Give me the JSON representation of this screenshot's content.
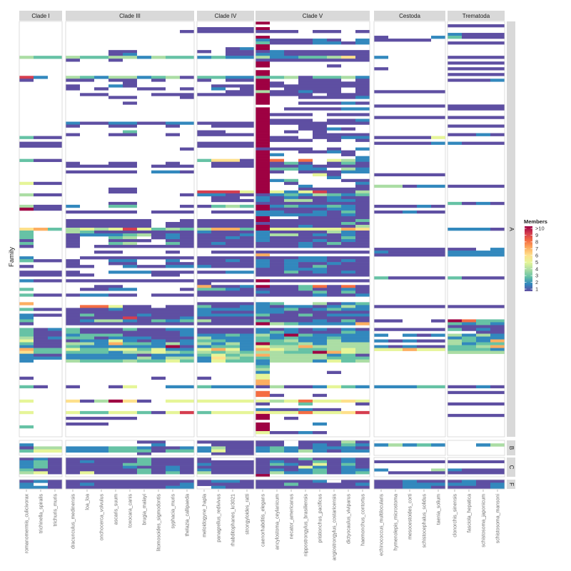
{
  "chart_data": {
    "type": "heatmap",
    "title": "",
    "xlabel": "",
    "ylabel": "Family",
    "encoding": "each row string lists one value per species column (groups separated by |): 0 = empty, 1-9 = member count, X = >10",
    "column_groups": [
      {
        "name": "Clade I",
        "species": [
          "romanomermis_culicivorax",
          "trichinella_spiralis",
          "trichuris_muris"
        ]
      },
      {
        "name": "Clade III",
        "species": [
          "dracunculus_medinensis",
          "loa_loa",
          "onchocerca_volvulus",
          "ascaris_suum",
          "toxocara_canis",
          "brugia_malayi",
          "litomosoides_sigmodontis",
          "syphacia_muris",
          "thelazia_callipaeda"
        ]
      },
      {
        "name": "Clade IV",
        "species": [
          "meloidogyne_hapla",
          "panagrellus_redivivus",
          "rhabditophanes_kr3021",
          "strongyloides_ratti"
        ]
      },
      {
        "name": "Clade V",
        "species": [
          "caenorhabditis_elegans",
          "ancylostoma_ceylanicum",
          "necator_americanus",
          "nippostrongylus_brasiliensis",
          "pristionchus_pacificus",
          "angiostrongylus_costaricensis",
          "dictyocaulus_viviparus",
          "haemonchus_contortus"
        ]
      },
      {
        "name": "Cestoda",
        "species": [
          "echinococcus_multilocularis",
          "hymenolepis_microstoma",
          "mesocestoides_corti",
          "schistocephalus_solidus",
          "taenia_solium"
        ]
      },
      {
        "name": "Trematoda",
        "species": [
          "clonorchis_sinensis",
          "fasciola_hepatica",
          "schistosoma_japonicum",
          "schistosoma_mansoni"
        ]
      }
    ],
    "row_groups": [
      {
        "name": "A",
        "rows": [
          "000|000000000|0000|X0000000|00000|0000",
          "000|000000000|0000|00000000|00000|1111",
          "000|000000000|1111|X0000000|00000|0000",
          "000|000000001|1111|11101101|00000|0000",
          "000|000000000|0000|00000000|00000|2111",
          "000|000000000|0000|X0000000|10002|3111",
          "000|000000000|0000|21112102|11110|0000",
          "000|000000000|0000|31112212|00000|1111",
          "000|000000000|0000|X0000000|00000|0000",
          "000|000000000|0012|X0000000|00000|0000",
          "000|000110000|1011|12111111|00000|0000",
          "000|000120000|0011|22111111|00000|0000",
          "433|433442433|2322|42233461|20000|1111",
          "000|100100000|0000|11111111|00000|0000",
          "000|000000000|0000|X0000000|00000|1111",
          "000|000000000|0000|X0000100|00000|0000",
          "000|000000000|0000|00000000|10000|1111",
          "000|000000000|0000|X0000000|00000|0000",
          "000|000000000|0000|X0000000|00000|1111",
          "920|432442341|3322|33413342|00000|0000",
          "100|110110100|1011|X0011101|00000|1112",
          "000|000010000|0000|X1011111|00000|0000",
          "000|100210000|0111|X1111111|00000|0000",
          "000|101001101|0201|X0111101|00000|0000",
          "000|000000000|0011|41121101|11111|0000",
          "000|011000111|1111|X1110111|00000|0000",
          "000|000110001|0000|X0011112|00000|0000",
          "000|000000000|0000|X0000000|00000|0000",
          "000|000010000|0000|X0011121|00000|0000",
          "000|000000000|0000|00000000|11111|1111",
          "000|000000000|0000|X0111122|00000|1111",
          "000|000000000|0000|X0000000|00000|0000",
          "000|000000000|0000|X1110111|00000|0000",
          "000|000000000|0000|X0000000|11111|1111",
          "000|000000000|0000|X1110112|00000|0000",
          "000|211221122|1111|X1111111|00000|0000",
          "000|100110010|0111|X0011000|00000|1111",
          "000|000000000|0000|X0011210|00000|0000",
          "000|000030000|1100|X0101000|00000|0000",
          "000|100110010|1111|X0001111|00000|1121",
          "311|000000000|0000|X1101122|11115|0000",
          "000|000000000|0000|X1110101|00000|0000",
          "111|000000000|1111|X0000000|11112|2111",
          "111|000000000|1111|X0000000|00000|0000",
          "000|000000001|0000|11110102|00000|0000",
          "000|000000000|0000|X0011210|00000|0000",
          "000|000000000|0000|X2000010|00000|0000",
          "000|000000000|0000|X0000002|00000|0000",
          "311|000000000|3661|X8080542|00000|0000",
          "000|100110010|0111|X1310131|00000|0000",
          "000|111110111|0111|X1121111|00000|0000",
          "000|000000000|0000|X3322042|00000|0000",
          "000|111110221|0000|X1011122|00000|0000",
          "000|000000000|0000|X0005100|11111|0000",
          "000|000000000|0000|X0000200|00000|0000",
          "000|000000000|0000|X2300011|00000|0000",
          "511|000000000|0000|X0100002|00000|0000",
          "000|000000000|0000|X0020001|44122|1111",
          "000|000110000|0000|X0011111|00000|0000",
          "000|000110000|9995|X5259114|00000|0000",
          "411|000000001|2211|12324323|00000|0000",
          "000|000000000|0110|21211211|00000|0000",
          "000|000000000|0111|21441221|00000|0000",
          "000|000110000|0000|11111111|00000|3121",
          "411|200330001|1343|X2322321|11121|0000",
          "X11|000000000|0000|X1111221|00000|0000",
          "000|111110111|0111|22112131|11211|0000",
          "000|000000000|0000|22222121|00000|0000",
          "000|000000000|0000|X0011111|00000|0000",
          "000|111111001|1111|X1111113|00000|0000",
          "000|111111011|1111|11111131|00000|0000",
          "000|111111011|1111|X1121114|00000|0000",
          "673|454595343|4773|X5555576|00000|2221",
          "300|431111111|2111|21111421|00000|0000",
          "300|122234121|1112|24412121|00000|0000",
          "300|100340121|1121|21111131|00000|0000",
          "100|100111011|1111|21112121|00000|0000",
          "300|100340031|1211|11121311|00000|0000",
          "100|101111111|1111|11121111|00000|0000",
          "000|000000000|0000|00000000|11111|1102",
          "000|001100010|0111|11111111|21111|2222",
          "000|000000000|0000|70000000|11111|2222",
          "200|011111111|1111|11122111|00000|0000",
          "311|100220020|1121|21222121|00000|0000",
          "000|100110011|1111|21211211|00000|0000",
          "100|110021122|2111|21213111|00000|0000",
          "000|000000000|0000|11222111|00000|0000",
          "111|100222111|1122|11312121|00000|0000",
          "111|110000110|0000|11111111|00000|0000",
          "000|000000000|0000|00000000|31111|3111",
          "211|111111111|1111|X1111111|00000|0000",
          "000|000000000|1000|00000000|00000|0000",
          "000|001100000|7112|X1138181|00000|0000",
          "300|011220001|3321|11131121|00000|0000",
          "000|000000000|1111|21113131|00000|0000",
          "311|122110111|1111|11112112|00000|0000",
          "000|000000000|0000|00000000|00000|0000",
          "000|000000000|0000|00000000|00000|0000",
          "700|000000000|1111|23004123|00000|0000",
          "000|088511011|3112|21221242|11111|1111",
          "311|111211111|2222|22312322|00000|0000",
          "000|111111111|2111|22111111|00000|0000",
          "211|131112111|2222|31131222|00000|0000",
          "200|111191112|1111|11111111|00000|0000",
          "300|124421323|4111|31112131|11001|X833",
          "100|111111111|1111|X4322227|00000|3232",
          "000|000000000|0000|00000000|00000|1111",
          "312|311131122|1111|21212121|11111|3121",
          "311|311111112|1111|23211132|00000|0011",
          "311|233311112|2232|42X32222|20212|4242",
          "412|331222111|4222|32322322|00000|2322",
          "511|122521212|3322|33422422|21211|4327",
          "311|442733242|4242|X3342444|00000|4233",
          "211|3222222X1|2332|54474444|21211|3347",
          "733|533553522|5752|75433454|55755|3332",
          "633|333244543|4343|4433X754|00000|4444",
          "211|222221222|3534|74444231|00000|0000",
          "222|222224244|2643|34444333|00000|0000",
          "200|433343353|2533|24442534|00000|0000",
          "000|000000000|0000|20000000|00000|0000",
          "000|000000000|0000|30000000|00000|0000",
          "000|000000000|0000|40000000|00000|0000",
          "000|000000000|0000|20000100|00000|0000",
          "000|000000000|0000|50000000|00000|0000",
          "100|000000100|1000|50000000|00000|0000",
          "000|000000000|0000|70000000|00000|0000",
          "000|000000000|0000|70000000|00000|0000",
          "310|100150022|3222|14112532|22233|1121",
          "000|000000000|0000|00000000|00000|0000",
          "000|000000000|0000|80000000|00000|1111",
          "000|000000000|0000|81001000|00000|0000",
          "000|000000000|0000|00000000|00000|0000",
          "500|614X61055|5555|54585565|00000|0000",
          "000|000000000|0000|10030001|00000|1111",
          "000|000000000|0000|00000000|00000|0000",
          "000|000000000|0000|21121100|00000|0000",
          "500|533553159|3555|65585569|00000|0000",
          "000|000000000|0000|X0000000|00000|1111",
          "000|111110000|0000|X0100000|00000|0000",
          "000|000000000|0000|00000000|00000|0000",
          "000|111000000|0000|X0002000|00000|0000",
          "300|000000000|0000|X0000000|00000|0000",
          "000|000000000|0000|X0000000|00000|0000",
          "000|000000000|0000|51121000|00000|0000",
          "000|000000000|0000|00000000|00000|0000"
        ]
      },
      {
        "name": "B",
        "rows": [
          "000|000001100|1111|11011141|00000|0000",
          "200|000000200|0111|11012132|24232|0024",
          "144|222332112|2411|23212221|00000|0000",
          "355|222333133|2511|23242122|00000|0000",
          "000|000001000|0111|00000000|00000|0000"
        ]
      },
      {
        "name": "C",
        "rows": [
          "121|111113111|1000|11131121|00000|0000",
          "231|121113111|1111|12113121|11111|1111",
          "231|111133111|2111|13215131|00000|0000",
          "231|111121121|1111|11152121|00000|0000",
          "311|111113121|2111|12123122|20004|2111",
          "451|151113131|4111|14223123|01111|1111",
          "000|000000000|0000|X0000000|00000|0000"
        ]
      },
      {
        "name": "F",
        "rows": [
          "121|111111111|1221|11112011|11211|1211",
          "201|121111112|1111|11311112|11222|2212",
          "221|111111122|0211|11111111|11221|1112"
        ]
      }
    ],
    "legend": {
      "title": "Members",
      "position": "right",
      "labels": [
        ">10",
        "9",
        "8",
        "7",
        "6",
        "5",
        "4",
        "3",
        "2",
        "1"
      ],
      "colors": {
        "1": "#5E4FA2",
        "2": "#3288BD",
        "3": "#66C2A5",
        "4": "#ABDDA4",
        "5": "#E6F598",
        "6": "#FEE08B",
        "7": "#FDAE61",
        "8": "#F46D43",
        "9": "#D53E4F",
        "X": "#9E0142"
      }
    }
  }
}
